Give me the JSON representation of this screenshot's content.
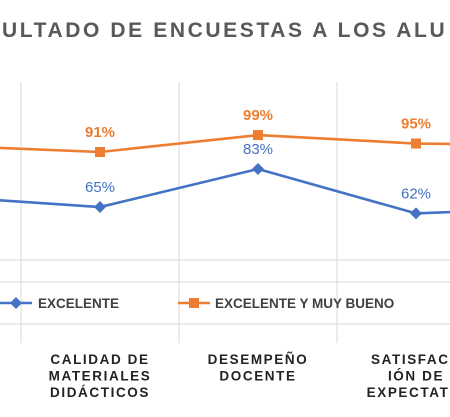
{
  "chart_data": {
    "type": "line",
    "title": "ULTADO DE ENCUESTAS A LOS ALU",
    "categories": [
      "",
      [
        "CALIDAD DE",
        "MATERIALES",
        "DIDÁCTICOS"
      ],
      [
        "DESEMPEÑO",
        "DOCENTE"
      ],
      [
        "SATISFACC",
        "IÓN DE",
        "EXPECTATIV"
      ],
      ""
    ],
    "series": [
      {
        "name": "EXCELENTE",
        "color": "#4472C4",
        "marker": "diamond",
        "values": [
          70,
          65,
          83,
          62,
          65
        ],
        "labels": [
          "",
          "65%",
          "83%",
          "62%",
          ""
        ]
      },
      {
        "name": "EXCELENTE Y MUY BUENO",
        "color": "#ED7D31",
        "marker": "square",
        "values": [
          94,
          91,
          99,
          95,
          94
        ],
        "labels": [
          "",
          "91%",
          "99%",
          "95%",
          ""
        ]
      }
    ],
    "ylim": [
      40,
      125
    ],
    "grid": "vertical",
    "legend": "bottom"
  }
}
